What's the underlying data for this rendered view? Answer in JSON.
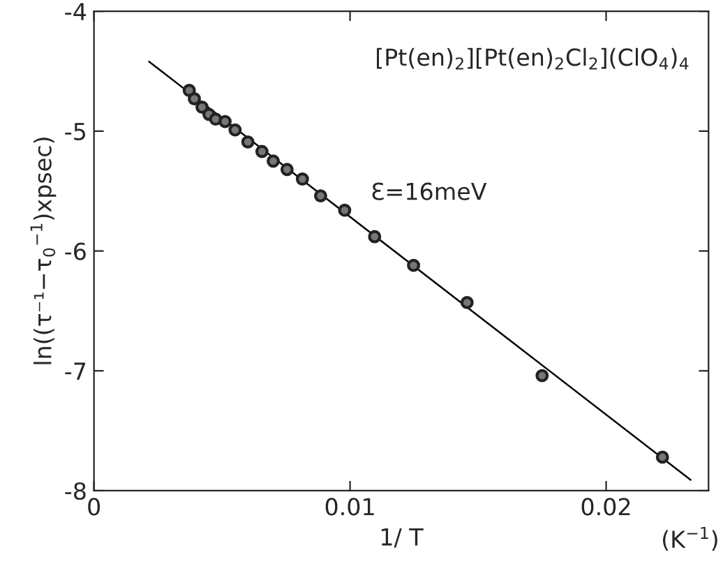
{
  "chart_data": {
    "type": "scatter",
    "xlabel": "1/ T",
    "ylabel": "ln((τ⁻¹−τ$_{0}$$^{−1}$)xpsec)",
    "annotations": [
      "[Pt(en)$_{2}$][Pt(en)$_{2}$Cl$_{2}$](ClO$_{4}$)$_{4}$",
      "Ɛ=16meV",
      "(K$^{−1}$)"
    ],
    "x": [
      0.00372,
      0.00392,
      0.00422,
      0.00449,
      0.00475,
      0.00512,
      0.00551,
      0.00601,
      0.00656,
      0.007,
      0.00754,
      0.00814,
      0.00885,
      0.00979,
      0.01096,
      0.01248,
      0.01457,
      0.0175,
      0.0222
    ],
    "series": [
      {
        "color": "#222222",
        "marker": "circle",
        "values": [
          -4.66,
          -4.73,
          -4.8,
          -4.86,
          -4.9,
          -4.92,
          -4.99,
          -5.09,
          -5.17,
          -5.25,
          -5.32,
          -5.4,
          -5.54,
          -5.66,
          -5.88,
          -6.12,
          -6.43,
          -7.04,
          -7.72
        ]
      },
      {
        "type": "line",
        "color": "#000000",
        "line_style": "solid",
        "x": [
          0.00215,
          0.0233
        ],
        "values": [
          -4.42,
          -7.91
        ]
      }
    ],
    "xlim": [
      0,
      0.024
    ],
    "xticks": [
      0,
      0.01,
      0.02
    ],
    "ylim": [
      -8,
      -4
    ],
    "yticks": [
      -8,
      -7,
      -6,
      -5,
      -4
    ],
    "grid": false,
    "legend": false
  }
}
